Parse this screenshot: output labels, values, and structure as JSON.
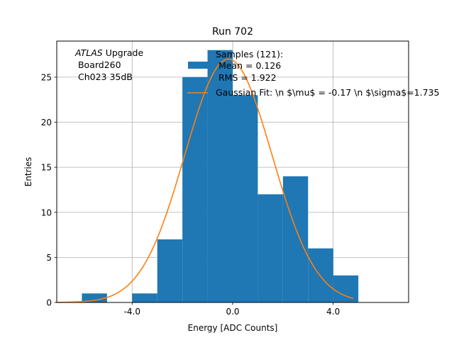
{
  "chart_data": {
    "type": "bar",
    "title": "Run 702",
    "xlabel": "Energy [ADC Counts]",
    "ylabel": "Entries",
    "xlim": [
      -7.0,
      7.0
    ],
    "ylim": [
      0,
      29
    ],
    "grid": true,
    "x_ticks": [
      {
        "value": -4.0,
        "label": "-4.0"
      },
      {
        "value": 0.0,
        "label": "0.0"
      },
      {
        "value": 4.0,
        "label": "4.0"
      }
    ],
    "y_ticks": [
      {
        "value": 0,
        "label": "0"
      },
      {
        "value": 5,
        "label": "5"
      },
      {
        "value": 10,
        "label": "10"
      },
      {
        "value": 15,
        "label": "15"
      },
      {
        "value": 20,
        "label": "20"
      },
      {
        "value": 25,
        "label": "25"
      }
    ],
    "histogram": {
      "name": "Samples (121):",
      "color": "#1f77b4",
      "bin_edges": [
        -6,
        -5,
        -4,
        -3,
        -2,
        -1,
        0,
        1,
        2,
        3,
        4,
        5
      ],
      "counts": [
        1,
        0,
        1,
        7,
        25,
        28,
        23,
        12,
        14,
        6,
        3
      ]
    },
    "fit_curve": {
      "name": "Gaussian Fit: \\n $\\mu$ = -0.17 \\n $\\sigma$=1.735",
      "color": "#ff7f0e",
      "amplitude": 27.0,
      "mu": -0.17,
      "sigma": 1.735,
      "x_range": [
        -7.0,
        4.8
      ]
    },
    "annotation": {
      "lines": [
        "ATLAS",
        " Upgrade",
        " Board260",
        " Ch023 35dB"
      ]
    },
    "legend": {
      "location": "upper-right",
      "hist_lines": [
        "Samples (121):",
        " Mean = 0.126",
        " RMS = 1.922"
      ],
      "fit_label": "Gaussian Fit: \\n $\\mu$ = -0.17 \\n $\\sigma$=1.735"
    }
  }
}
